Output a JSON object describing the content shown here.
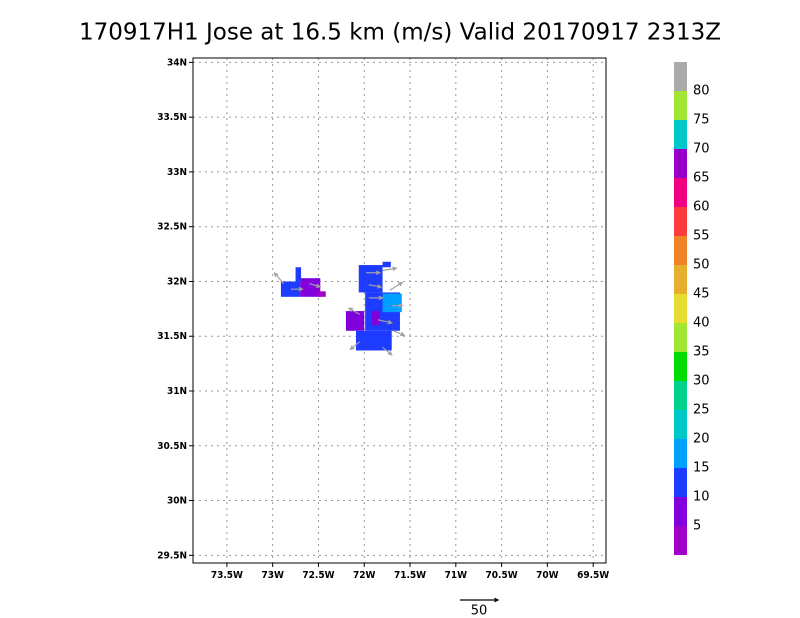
{
  "chart_data": {
    "type": "heatmap",
    "title": "170917H1 Jose at 16.5 km (m/s) Valid 20170917 2313Z",
    "xlim": [
      -73.87,
      -69.36
    ],
    "ylim": [
      29.43,
      34.04
    ],
    "xticks": [
      {
        "value": -73.5,
        "label": "73.5W"
      },
      {
        "value": -73,
        "label": "73W"
      },
      {
        "value": -72.5,
        "label": "72.5W"
      },
      {
        "value": -72,
        "label": "72W"
      },
      {
        "value": -71.5,
        "label": "71.5W"
      },
      {
        "value": -71,
        "label": "71W"
      },
      {
        "value": -70.5,
        "label": "70.5W"
      },
      {
        "value": -70,
        "label": "70W"
      },
      {
        "value": -69.5,
        "label": "69.5W"
      }
    ],
    "yticks": [
      {
        "value": 29.5,
        "label": "29.5N"
      },
      {
        "value": 30,
        "label": "30N"
      },
      {
        "value": 30.5,
        "label": "30.5N"
      },
      {
        "value": 31,
        "label": "31N"
      },
      {
        "value": 31.5,
        "label": "31.5N"
      },
      {
        "value": 32,
        "label": "32N"
      },
      {
        "value": 32.5,
        "label": "32.5N"
      },
      {
        "value": 33,
        "label": "33N"
      },
      {
        "value": 33.5,
        "label": "33.5N"
      },
      {
        "value": 34,
        "label": "34N"
      }
    ],
    "grid": true,
    "levels": [
      5,
      10,
      15,
      20,
      25,
      30,
      35,
      40,
      45,
      50,
      55,
      60,
      65,
      70,
      75,
      80
    ],
    "colors": [
      "#a000c8",
      "#8200dc",
      "#1e3cff",
      "#00a0ff",
      "#00c8c8",
      "#00d28c",
      "#00dc00",
      "#a0e632",
      "#e6dc32",
      "#e6af2d",
      "#f08228",
      "#fa3c3c",
      "#f00082",
      "#9600c8",
      "#00c8c8",
      "#a0e632",
      "#aaaaaa"
    ],
    "cells": [
      {
        "lon0": -72.91,
        "lon1": -72.7,
        "lat0": 31.86,
        "lat1": 32.0,
        "value": 12
      },
      {
        "lon0": -72.7,
        "lon1": -72.48,
        "lat0": 31.86,
        "lat1": 32.03,
        "value": 7
      },
      {
        "lon0": -72.51,
        "lon1": -72.42,
        "lat0": 31.86,
        "lat1": 31.91,
        "value": 3
      },
      {
        "lon0": -72.75,
        "lon1": -72.69,
        "lat0": 32.0,
        "lat1": 32.13,
        "value": 11
      },
      {
        "lon0": -72.06,
        "lon1": -71.8,
        "lat0": 31.9,
        "lat1": 32.15,
        "value": 12
      },
      {
        "lon0": -71.99,
        "lon1": -71.61,
        "lat0": 31.55,
        "lat1": 31.9,
        "value": 13
      },
      {
        "lon0": -71.8,
        "lon1": -71.59,
        "lat0": 31.72,
        "lat1": 31.89,
        "value": 17
      },
      {
        "lon0": -72.2,
        "lon1": -72.0,
        "lat0": 31.55,
        "lat1": 31.73,
        "value": 7
      },
      {
        "lon0": -72.09,
        "lon1": -71.7,
        "lat0": 31.37,
        "lat1": 31.55,
        "value": 12
      },
      {
        "lon0": -71.92,
        "lon1": -71.83,
        "lat0": 31.6,
        "lat1": 31.73,
        "value": 8
      },
      {
        "lon0": -71.8,
        "lon1": -71.71,
        "lat0": 32.13,
        "lat1": 32.18,
        "value": 12
      }
    ],
    "vectors": [
      {
        "lon": -72.88,
        "lat": 31.98,
        "u": -12,
        "v": 14
      },
      {
        "lon": -72.8,
        "lat": 31.93,
        "u": 15,
        "v": 0
      },
      {
        "lon": -72.6,
        "lat": 31.98,
        "u": 14,
        "v": -4
      },
      {
        "lon": -71.98,
        "lat": 32.08,
        "u": 18,
        "v": 0
      },
      {
        "lon": -71.8,
        "lat": 32.1,
        "u": 18,
        "v": 3
      },
      {
        "lon": -71.95,
        "lat": 31.97,
        "u": 16,
        "v": -3
      },
      {
        "lon": -71.72,
        "lat": 31.92,
        "u": 16,
        "v": 10
      },
      {
        "lon": -71.95,
        "lat": 31.85,
        "u": 18,
        "v": 0
      },
      {
        "lon": -71.7,
        "lat": 31.78,
        "u": 14,
        "v": 0
      },
      {
        "lon": -72.05,
        "lat": 31.7,
        "u": -14,
        "v": 8
      },
      {
        "lon": -71.85,
        "lat": 31.65,
        "u": 18,
        "v": -4
      },
      {
        "lon": -71.68,
        "lat": 31.55,
        "u": 14,
        "v": -6
      },
      {
        "lon": -72.05,
        "lat": 31.45,
        "u": -12,
        "v": -10
      },
      {
        "lon": -71.8,
        "lat": 31.4,
        "u": 12,
        "v": -10
      }
    ],
    "vector_ref": 50,
    "vector_color": "#a0a0a0"
  }
}
